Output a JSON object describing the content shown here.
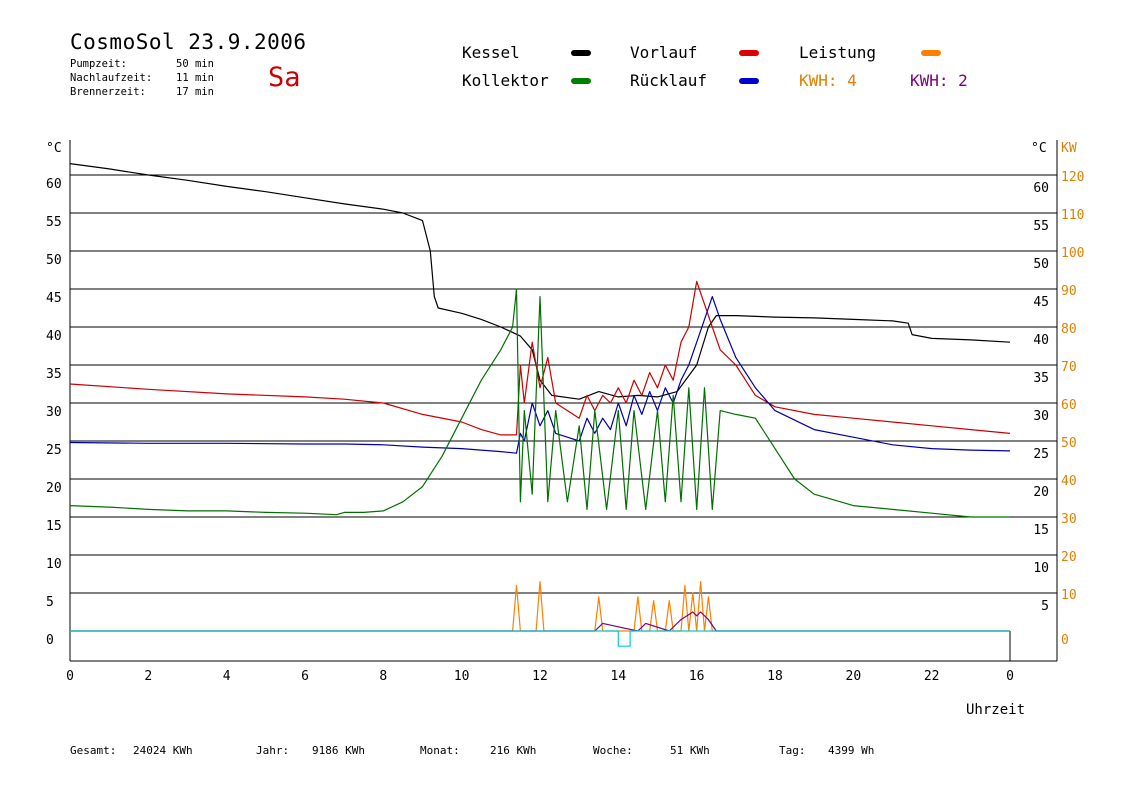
{
  "header": {
    "title": "CosmoSol 23.9.2006",
    "day": "Sa",
    "stats": [
      {
        "label": "Pumpzeit:",
        "value": "50 min"
      },
      {
        "label": "Nachlaufzeit:",
        "value": "11 min"
      },
      {
        "label": "Brennerzeit:",
        "value": "17 min"
      }
    ]
  },
  "legend": {
    "items": [
      {
        "label": "Kessel",
        "color": "#000000"
      },
      {
        "label": "Kollektor",
        "color": "#008000"
      },
      {
        "label": "Vorlauf",
        "color": "#dd0000"
      },
      {
        "label": "Rücklauf",
        "color": "#0000cc"
      },
      {
        "label": "Leistung",
        "color": "#ff8000"
      }
    ],
    "kwh_orange": "KWH: 4",
    "kwh_purple": "KWH: 2",
    "orange_color": "#e08000",
    "purple_color": "#800080"
  },
  "footer": {
    "items": [
      {
        "label": "Gesamt:",
        "value": "24024 KWh"
      },
      {
        "label": "Jahr:",
        "value": "9186 KWh"
      },
      {
        "label": "Monat:",
        "value": "216 KWh"
      },
      {
        "label": "Woche:",
        "value": "51 KWh"
      },
      {
        "label": "Tag:",
        "value": "4399 Wh"
      }
    ]
  },
  "chart_data": {
    "type": "line",
    "xlabel": "Uhrzeit",
    "x_ticks": [
      "0",
      "2",
      "4",
      "6",
      "8",
      "10",
      "12",
      "14",
      "16",
      "18",
      "20",
      "22",
      "0"
    ],
    "xlim": [
      0,
      24
    ],
    "ylim": [
      0,
      60
    ],
    "grid": true,
    "left_axis": {
      "unit": "°C",
      "ticks": [
        "0",
        "5",
        "10",
        "15",
        "20",
        "25",
        "30",
        "35",
        "40",
        "45",
        "50",
        "55",
        "60"
      ]
    },
    "right_axis_temp": {
      "unit": "°C",
      "ticks": [
        "5",
        "10",
        "15",
        "20",
        "25",
        "30",
        "35",
        "40",
        "45",
        "50",
        "55",
        "60"
      ]
    },
    "right_axis_power": {
      "unit": "KW",
      "ticks": [
        "0",
        "10",
        "20",
        "30",
        "40",
        "50",
        "60",
        "70",
        "80",
        "90",
        "100",
        "110",
        "120"
      ],
      "ylim": [
        0,
        120
      ]
    },
    "series": [
      {
        "name": "Kessel",
        "color": "#000000",
        "x": [
          0,
          1,
          2,
          3,
          4,
          5,
          6,
          7,
          8,
          8.5,
          9.0,
          9.2,
          9.3,
          9.4,
          10,
          10.5,
          11,
          11.5,
          11.8,
          12,
          12.3,
          13,
          13.5,
          14,
          14.5,
          15,
          15.5,
          16,
          16.3,
          16.5,
          17,
          18,
          19,
          20,
          21,
          21.4,
          21.5,
          22,
          23,
          24
        ],
        "y": [
          61.5,
          60.8,
          60,
          59.3,
          58.5,
          57.8,
          57,
          56.2,
          55.5,
          55,
          54,
          50,
          44,
          42.5,
          41.8,
          41,
          40,
          38.8,
          37,
          33,
          31,
          30.5,
          31.5,
          30.8,
          31,
          30.8,
          31.5,
          35,
          40,
          41.5,
          41.5,
          41.3,
          41.2,
          41,
          40.8,
          40.5,
          39,
          38.5,
          38.3,
          38
        ]
      },
      {
        "name": "Vorlauf",
        "color": "#cc0000",
        "x": [
          0,
          2,
          4,
          6,
          7,
          8,
          9,
          10,
          10.5,
          11,
          11.4,
          11.5,
          11.6,
          11.8,
          12,
          12.2,
          12.4,
          12.7,
          13,
          13.2,
          13.4,
          13.6,
          13.8,
          14,
          14.2,
          14.4,
          14.6,
          14.8,
          15,
          15.2,
          15.4,
          15.6,
          15.8,
          16,
          16.2,
          16.4,
          16.6,
          17,
          17.5,
          18,
          19,
          20,
          21,
          22,
          23,
          24
        ],
        "y": [
          32.5,
          31.8,
          31.2,
          30.8,
          30.5,
          30,
          28.5,
          27.5,
          26.5,
          25.8,
          25.8,
          35,
          30,
          38,
          32,
          36,
          30,
          29,
          28,
          31,
          29,
          31,
          30,
          32,
          30,
          33,
          31,
          34,
          32,
          35,
          33,
          38,
          40,
          46,
          43,
          40,
          37,
          35,
          31,
          29.5,
          28.5,
          28,
          27.5,
          27,
          26.5,
          26
        ]
      },
      {
        "name": "Rücklauf",
        "color": "#0000aa",
        "x": [
          0,
          2,
          4,
          6,
          7,
          8,
          9,
          10,
          10.5,
          11,
          11.4,
          11.5,
          11.6,
          11.8,
          12,
          12.2,
          12.4,
          12.7,
          13,
          13.2,
          13.4,
          13.6,
          13.8,
          14,
          14.2,
          14.4,
          14.6,
          14.8,
          15,
          15.2,
          15.4,
          15.6,
          15.8,
          16,
          16.2,
          16.4,
          16.6,
          17,
          17.5,
          18,
          19,
          20,
          21,
          22,
          23,
          24
        ],
        "y": [
          24.8,
          24.7,
          24.7,
          24.6,
          24.6,
          24.5,
          24.2,
          24,
          23.8,
          23.6,
          23.4,
          26,
          25,
          30,
          27,
          29,
          26,
          25.5,
          25,
          28,
          26,
          28,
          26.5,
          30,
          27,
          31,
          28.5,
          31.5,
          29,
          32,
          30,
          33,
          35,
          38,
          41,
          44,
          41,
          36,
          32,
          29,
          26.5,
          25.5,
          24.5,
          24,
          23.8,
          23.7
        ]
      },
      {
        "name": "Kollektor",
        "color": "#007000",
        "x": [
          0,
          1,
          2,
          3,
          4,
          5,
          6,
          6.8,
          7,
          7.5,
          8,
          8.5,
          9,
          9.5,
          10,
          10.5,
          11,
          11.3,
          11.4,
          11.5,
          11.6,
          11.8,
          12,
          12.2,
          12.4,
          12.7,
          13,
          13.2,
          13.4,
          13.7,
          14,
          14.2,
          14.4,
          14.7,
          15,
          15.2,
          15.4,
          15.6,
          15.8,
          16,
          16.2,
          16.4,
          16.6,
          17,
          17.5,
          18,
          18.5,
          19,
          20,
          21,
          22,
          23,
          24
        ],
        "y": [
          16.5,
          16.3,
          16,
          15.8,
          15.8,
          15.6,
          15.5,
          15.3,
          15.6,
          15.6,
          15.8,
          17,
          19,
          23,
          28,
          33,
          37,
          40,
          45,
          17,
          29,
          18,
          44,
          17,
          29,
          17,
          27,
          16,
          29,
          16,
          29,
          16,
          29,
          16,
          29,
          17,
          31,
          17,
          32,
          16,
          32,
          16,
          29,
          28.5,
          28,
          24,
          20,
          18,
          16.5,
          16,
          15.5,
          15,
          15
        ]
      },
      {
        "name": "Leistung",
        "color": "#ff8000",
        "axis": "power",
        "x": [
          0,
          11.3,
          11.4,
          11.5,
          11.9,
          12,
          12.1,
          12.3,
          13.4,
          13.5,
          13.6,
          14.4,
          14.5,
          14.6,
          14.8,
          14.9,
          15,
          15.2,
          15.3,
          15.4,
          15.6,
          15.7,
          15.8,
          15.9,
          16,
          16.1,
          16.2,
          16.3,
          16.4,
          16.5,
          24
        ],
        "y": [
          0,
          0,
          12,
          0,
          0,
          13,
          0,
          0,
          0,
          9,
          0,
          0,
          9,
          0,
          0,
          8,
          0,
          0,
          8,
          0,
          0,
          12,
          0,
          10,
          0,
          13,
          0,
          9,
          0,
          0,
          0
        ]
      },
      {
        "name": "Leistung2",
        "color": "#800080",
        "axis": "power",
        "x": [
          0,
          13.4,
          13.6,
          14.5,
          14.7,
          15.3,
          15.6,
          15.9,
          16,
          16.1,
          16.3,
          16.5,
          24
        ],
        "y": [
          0,
          0,
          2,
          0,
          2,
          0,
          3,
          5,
          4,
          5,
          3,
          0,
          0
        ]
      },
      {
        "name": "Status",
        "color": "#00cccc",
        "axis": "power",
        "x": [
          0,
          14,
          14,
          14.3,
          14.3,
          24
        ],
        "y": [
          0,
          0,
          -4,
          -4,
          0,
          0
        ]
      }
    ]
  }
}
